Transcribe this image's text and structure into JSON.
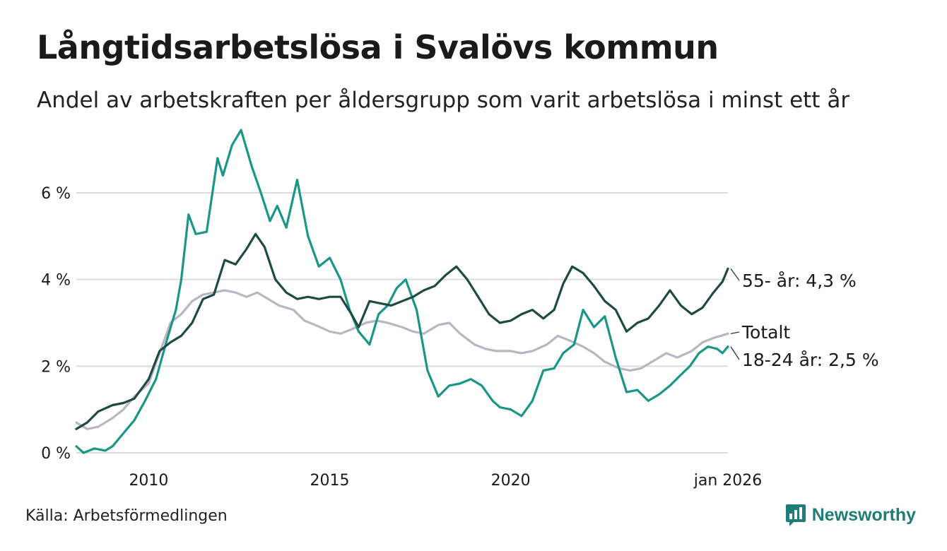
{
  "title": "Långtidsarbetslösa i Svalövs kommun",
  "subtitle": "Andel av arbetskraften per åldersgrupp som varit arbetslösa i minst ett år",
  "source": "Källa: Arbetsförmedlingen",
  "brand": "Newsworthy",
  "colors": {
    "series_55": "#1f4a44",
    "series_18_24": "#1a9688",
    "series_total": "#b9b6c4",
    "grid": "#dcdcdc",
    "brand": "#1f7d78"
  },
  "chart_data": {
    "type": "line",
    "title": "Långtidsarbetslösa i Svalövs kommun",
    "xlabel": "",
    "ylabel": "",
    "xlim": [
      2008.0,
      2026.0
    ],
    "ylim": [
      0,
      7.5
    ],
    "yticks": [
      {
        "value": 0,
        "label": "0 %"
      },
      {
        "value": 2,
        "label": "2 %"
      },
      {
        "value": 4,
        "label": "4 %"
      },
      {
        "value": 6,
        "label": "6 %"
      }
    ],
    "xticks": [
      {
        "value": 2010,
        "label": "2010"
      },
      {
        "value": 2015,
        "label": "2015"
      },
      {
        "value": 2020,
        "label": "2020"
      },
      {
        "value": 2026,
        "label": "jan 2026"
      }
    ],
    "series": [
      {
        "key": "total",
        "name": "Totalt",
        "label": "Totalt",
        "color": "#b9b6c4",
        "x": [
          2008.0,
          2008.3,
          2008.6,
          2009.0,
          2009.3,
          2009.6,
          2010.0,
          2010.3,
          2010.6,
          2010.9,
          2011.2,
          2011.5,
          2011.8,
          2012.1,
          2012.4,
          2012.7,
          2013.0,
          2013.3,
          2013.6,
          2014.0,
          2014.3,
          2014.6,
          2015.0,
          2015.3,
          2015.6,
          2016.0,
          2016.3,
          2016.6,
          2017.0,
          2017.3,
          2017.6,
          2018.0,
          2018.3,
          2018.6,
          2019.0,
          2019.3,
          2019.6,
          2020.0,
          2020.3,
          2020.6,
          2021.0,
          2021.3,
          2021.6,
          2022.0,
          2022.3,
          2022.6,
          2023.0,
          2023.3,
          2023.6,
          2024.0,
          2024.3,
          2024.6,
          2025.0,
          2025.3,
          2025.6,
          2026.0
        ],
        "values": [
          0.7,
          0.55,
          0.6,
          0.8,
          1.0,
          1.3,
          1.6,
          2.3,
          3.0,
          3.2,
          3.5,
          3.65,
          3.7,
          3.75,
          3.7,
          3.6,
          3.7,
          3.55,
          3.4,
          3.3,
          3.05,
          2.95,
          2.8,
          2.75,
          2.85,
          3.0,
          3.05,
          3.0,
          2.9,
          2.8,
          2.75,
          2.95,
          3.0,
          2.75,
          2.5,
          2.4,
          2.35,
          2.35,
          2.3,
          2.35,
          2.5,
          2.7,
          2.6,
          2.45,
          2.3,
          2.1,
          1.95,
          1.9,
          1.95,
          2.15,
          2.3,
          2.2,
          2.35,
          2.55,
          2.65,
          2.75
        ]
      },
      {
        "key": "s18_24",
        "name": "18-24 år",
        "label": "18-24 år: 2,5 %",
        "color": "#1a9688",
        "x": [
          2008.0,
          2008.2,
          2008.5,
          2008.8,
          2009.0,
          2009.3,
          2009.6,
          2009.9,
          2010.2,
          2010.5,
          2010.75,
          2010.9,
          2011.1,
          2011.3,
          2011.6,
          2011.9,
          2012.05,
          2012.3,
          2012.55,
          2012.85,
          2013.1,
          2013.35,
          2013.55,
          2013.8,
          2014.1,
          2014.4,
          2014.7,
          2015.0,
          2015.3,
          2015.55,
          2015.8,
          2016.1,
          2016.35,
          2016.6,
          2016.85,
          2017.1,
          2017.4,
          2017.7,
          2018.0,
          2018.3,
          2018.6,
          2018.9,
          2019.2,
          2019.5,
          2019.7,
          2020.0,
          2020.3,
          2020.6,
          2020.9,
          2021.2,
          2021.45,
          2021.75,
          2022.0,
          2022.3,
          2022.6,
          2022.9,
          2023.2,
          2023.5,
          2023.8,
          2024.1,
          2024.4,
          2024.7,
          2024.95,
          2025.2,
          2025.45,
          2025.7,
          2025.85,
          2026.0
        ],
        "values": [
          0.15,
          0.0,
          0.1,
          0.05,
          0.15,
          0.45,
          0.75,
          1.2,
          1.7,
          2.6,
          3.3,
          4.0,
          5.5,
          5.05,
          5.1,
          6.8,
          6.4,
          7.1,
          7.45,
          6.6,
          6.0,
          5.35,
          5.7,
          5.2,
          6.3,
          5.0,
          4.3,
          4.5,
          4.0,
          3.3,
          2.8,
          2.5,
          3.2,
          3.4,
          3.8,
          4.0,
          3.3,
          1.9,
          1.3,
          1.55,
          1.6,
          1.7,
          1.55,
          1.2,
          1.05,
          1.0,
          0.85,
          1.2,
          1.9,
          1.95,
          2.3,
          2.5,
          3.3,
          2.9,
          3.15,
          2.2,
          1.4,
          1.45,
          1.2,
          1.35,
          1.55,
          1.8,
          2.0,
          2.3,
          2.45,
          2.4,
          2.3,
          2.45
        ]
      },
      {
        "key": "s55",
        "name": "55- år",
        "label": "55- år: 4,3 %",
        "color": "#1f4a44",
        "x": [
          2008.0,
          2008.3,
          2008.6,
          2009.0,
          2009.3,
          2009.6,
          2010.0,
          2010.3,
          2010.6,
          2010.9,
          2011.2,
          2011.5,
          2011.8,
          2012.1,
          2012.4,
          2012.7,
          2012.95,
          2013.2,
          2013.5,
          2013.8,
          2014.1,
          2014.4,
          2014.7,
          2015.0,
          2015.3,
          2015.6,
          2015.8,
          2016.1,
          2016.4,
          2016.7,
          2017.0,
          2017.3,
          2017.6,
          2017.9,
          2018.2,
          2018.5,
          2018.8,
          2019.1,
          2019.4,
          2019.7,
          2020.0,
          2020.3,
          2020.6,
          2020.9,
          2021.2,
          2021.45,
          2021.7,
          2022.0,
          2022.3,
          2022.6,
          2022.9,
          2023.2,
          2023.5,
          2023.8,
          2024.1,
          2024.4,
          2024.7,
          2025.0,
          2025.3,
          2025.6,
          2025.85,
          2026.0
        ],
        "values": [
          0.55,
          0.7,
          0.95,
          1.1,
          1.15,
          1.25,
          1.7,
          2.35,
          2.55,
          2.7,
          3.0,
          3.55,
          3.65,
          4.45,
          4.35,
          4.7,
          5.05,
          4.75,
          4.0,
          3.7,
          3.55,
          3.6,
          3.55,
          3.6,
          3.6,
          3.2,
          2.9,
          3.5,
          3.45,
          3.4,
          3.5,
          3.6,
          3.75,
          3.85,
          4.1,
          4.3,
          4.0,
          3.6,
          3.2,
          3.0,
          3.05,
          3.2,
          3.3,
          3.1,
          3.3,
          3.9,
          4.3,
          4.15,
          3.85,
          3.5,
          3.3,
          2.8,
          3.0,
          3.1,
          3.4,
          3.75,
          3.4,
          3.2,
          3.35,
          3.7,
          3.95,
          4.25
        ]
      }
    ]
  }
}
